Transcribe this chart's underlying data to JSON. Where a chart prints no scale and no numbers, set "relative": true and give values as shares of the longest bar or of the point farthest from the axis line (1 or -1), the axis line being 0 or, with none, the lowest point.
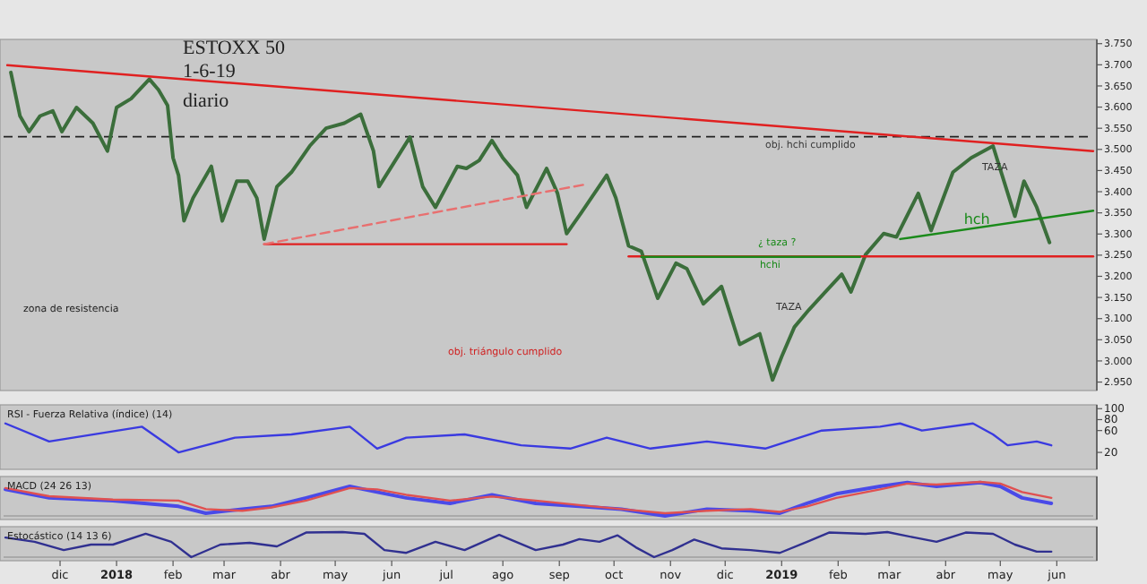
{
  "chart_data": [
    {
      "type": "line",
      "title": "ESTOXX 50",
      "subtitle": "1-6-19",
      "annotations": [
        "diario",
        "zona de resistencia",
        "obj. triángulo cumplido",
        "¿ taza ?",
        "TAZA",
        "TAZA",
        {
          "text": "obj. hchi cumplido",
          "x": "2018-12-23",
          "y": 3512
        },
        {
          "text": "hchi",
          "x": "2018-12-20",
          "y": 3227
        },
        {
          "text": "hch",
          "x": "2019-04-11",
          "y": 3334
        }
      ],
      "xlim": [
        "2017-10-31",
        "2019-06-21"
      ],
      "ylim": [
        2930,
        3760
      ],
      "yticks": [
        {
          "value": 2950,
          "label": "2.950"
        },
        {
          "value": 3000,
          "label": "3.000"
        },
        {
          "value": 3050,
          "label": "3.050"
        },
        {
          "value": 3100,
          "label": "3.100"
        },
        {
          "value": 3150,
          "label": "3.150"
        },
        {
          "value": 3200,
          "label": "3.200"
        },
        {
          "value": 3250,
          "label": "3.250"
        },
        {
          "value": 3300,
          "label": "3.300"
        },
        {
          "value": 3350,
          "label": "3.350"
        },
        {
          "value": 3400,
          "label": "3.400"
        },
        {
          "value": 3450,
          "label": "3.450"
        },
        {
          "value": 3500,
          "label": "3.500"
        },
        {
          "value": 3550,
          "label": "3.550"
        },
        {
          "value": 3600,
          "label": "3.600"
        },
        {
          "value": 3650,
          "label": "3.650"
        },
        {
          "value": 3700,
          "label": "3.700"
        },
        {
          "value": 3750,
          "label": "3.750"
        }
      ],
      "tick_labels": "y",
      "ref_lines": [
        {
          "axis": "y",
          "value": 3530,
          "color": "#222222",
          "line_style": "dashed"
        }
      ],
      "series": [
        {
          "color": "#3b6e3b",
          "x": [
            "2017-11-04",
            "2017-11-09",
            "2017-11-14",
            "2017-11-20",
            "2017-11-27",
            "2017-12-02",
            "2017-12-10",
            "2017-12-19",
            "2017-12-27",
            "2018-01-01",
            "2018-01-09",
            "2018-01-19",
            "2018-01-24",
            "2018-01-29",
            "2018-02-01",
            "2018-02-04",
            "2018-02-07",
            "2018-02-12",
            "2018-02-22",
            "2018-02-28",
            "2018-03-08",
            "2018-03-14",
            "2018-03-19",
            "2018-03-23",
            "2018-03-30",
            "2018-04-07",
            "2018-04-17",
            "2018-04-26",
            "2018-05-06",
            "2018-05-15",
            "2018-05-22",
            "2018-05-25",
            "2018-06-03",
            "2018-06-11",
            "2018-06-18",
            "2018-06-25",
            "2018-07-07",
            "2018-07-12",
            "2018-07-19",
            "2018-07-26",
            "2018-08-01",
            "2018-08-09",
            "2018-08-14",
            "2018-08-25",
            "2018-08-31",
            "2018-09-05",
            "2018-09-13",
            "2018-09-27",
            "2018-10-02",
            "2018-10-09",
            "2018-10-16",
            "2018-10-25",
            "2018-11-04",
            "2018-11-10",
            "2018-11-19",
            "2018-11-29",
            "2018-12-09",
            "2018-12-20",
            "2018-12-27",
            "2019-01-01",
            "2019-01-08",
            "2019-01-16",
            "2019-01-25",
            "2019-02-03",
            "2019-02-08",
            "2019-02-16",
            "2019-02-26",
            "2019-03-05",
            "2019-03-17",
            "2019-03-24",
            "2019-04-05",
            "2019-04-15",
            "2019-04-27",
            "2019-05-02",
            "2019-05-09",
            "2019-05-14",
            "2019-05-21",
            "2019-05-28"
          ],
          "values": [
            3682,
            3579,
            3542,
            3579,
            3591,
            3542,
            3599,
            3562,
            3496,
            3599,
            3620,
            3666,
            3641,
            3604,
            3480,
            3439,
            3331,
            3385,
            3460,
            3331,
            3425,
            3425,
            3385,
            3288,
            3412,
            3446,
            3508,
            3550,
            3562,
            3583,
            3496,
            3412,
            3474,
            3529,
            3412,
            3363,
            3460,
            3455,
            3474,
            3521,
            3480,
            3439,
            3363,
            3455,
            3396,
            3301,
            3350,
            3439,
            3385,
            3272,
            3259,
            3148,
            3231,
            3218,
            3135,
            3176,
            3039,
            3064,
            2955,
            3010,
            3080,
            3121,
            3163,
            3205,
            3163,
            3251,
            3301,
            3293,
            3396,
            3308,
            3446,
            3480,
            3508,
            3439,
            3342,
            3425,
            3363,
            3280
          ]
        },
        {
          "color": "#e02020",
          "x": [
            "2017-11-02",
            "2019-06-21"
          ],
          "values": [
            3699,
            3496
          ]
        },
        {
          "color": "#e02020",
          "x": [
            "2018-03-23",
            "2018-09-05"
          ],
          "values": [
            3276,
            3276
          ]
        },
        {
          "color": "#e87070",
          "line_style": "dashed",
          "x": [
            "2018-03-23",
            "2018-09-15"
          ],
          "values": [
            3276,
            3417
          ]
        },
        {
          "color": "#e02020",
          "x": [
            "2018-10-09",
            "2019-06-21"
          ],
          "values": [
            3247,
            3247
          ]
        },
        {
          "color": "#1a8a1a",
          "x": [
            "2018-10-16",
            "2019-02-13"
          ],
          "values": [
            3246,
            3246
          ]
        },
        {
          "color": "#1a8a1a",
          "x": [
            "2019-03-07",
            "2019-06-21"
          ],
          "values": [
            3288,
            3355
          ]
        }
      ]
    },
    {
      "type": "line",
      "title": "RSI - Fuerza Relativa (índice) (14)",
      "xlim": [
        "2017-10-31",
        "2019-06-21"
      ],
      "ylim": [
        -11,
        107
      ],
      "yticks": [
        20,
        60,
        80,
        100
      ],
      "tick_labels": "y",
      "series": [
        {
          "color": "#3a3ae0",
          "x": [
            "2017-11-01",
            "2017-11-25",
            "2018-01-15",
            "2018-02-04",
            "2018-03-07",
            "2018-04-07",
            "2018-05-09",
            "2018-05-24",
            "2018-06-09",
            "2018-07-11",
            "2018-08-11",
            "2018-09-07",
            "2018-09-27",
            "2018-10-21",
            "2018-11-21",
            "2018-12-23",
            "2019-01-23",
            "2019-02-24",
            "2019-03-07",
            "2019-03-19",
            "2019-04-16",
            "2019-04-27",
            "2019-05-05",
            "2019-05-21",
            "2019-05-29"
          ],
          "values": [
            73,
            40,
            67,
            20,
            47,
            53,
            67,
            27,
            47,
            53,
            33,
            27,
            47,
            27,
            40,
            27,
            60,
            67,
            73,
            60,
            73,
            53,
            33,
            40,
            33
          ]
        }
      ]
    },
    {
      "type": "line",
      "title": "MACD (24 26 13)",
      "relative": true,
      "xlim": [
        "2017-10-31",
        "2019-06-21"
      ],
      "series": [
        {
          "color": "#4a4ae8",
          "x": [
            "2017-11-01",
            "2017-11-25",
            "2017-12-30",
            "2018-02-04",
            "2018-02-19",
            "2018-03-11",
            "2018-03-27",
            "2018-04-15",
            "2018-05-09",
            "2018-05-24",
            "2018-06-09",
            "2018-07-03",
            "2018-07-26",
            "2018-08-19",
            "2018-09-12",
            "2018-10-05",
            "2018-10-29",
            "2018-11-21",
            "2018-12-15",
            "2018-12-31",
            "2019-01-15",
            "2019-01-31",
            "2019-02-24",
            "2019-03-11",
            "2019-03-27",
            "2019-04-20",
            "2019-05-01",
            "2019-05-13",
            "2019-05-29"
          ],
          "values": [
            0.78,
            0.53,
            0.45,
            0.28,
            0.08,
            0.2,
            0.28,
            0.53,
            0.87,
            0.7,
            0.53,
            0.37,
            0.62,
            0.37,
            0.28,
            0.2,
            0,
            0.2,
            0.15,
            0.08,
            0.37,
            0.65,
            0.87,
            0.98,
            0.87,
            0.98,
            0.87,
            0.53,
            0.37
          ]
        },
        {
          "color": "#e05050",
          "x": [
            "2017-11-01",
            "2017-11-25",
            "2017-12-30",
            "2018-02-04",
            "2018-02-19",
            "2018-03-11",
            "2018-03-27",
            "2018-04-15",
            "2018-05-09",
            "2018-05-24",
            "2018-06-09",
            "2018-07-03",
            "2018-07-26",
            "2018-08-19",
            "2018-09-12",
            "2018-10-05",
            "2018-10-29",
            "2018-11-21",
            "2018-12-15",
            "2018-12-31",
            "2019-01-15",
            "2019-01-31",
            "2019-02-24",
            "2019-03-11",
            "2019-03-27",
            "2019-04-20",
            "2019-05-01",
            "2019-05-13",
            "2019-05-29"
          ],
          "values": [
            0.82,
            0.58,
            0.48,
            0.45,
            0.2,
            0.15,
            0.25,
            0.45,
            0.82,
            0.78,
            0.62,
            0.45,
            0.57,
            0.45,
            0.32,
            0.2,
            0.08,
            0.15,
            0.2,
            0.12,
            0.28,
            0.53,
            0.78,
            0.95,
            0.92,
            1,
            0.95,
            0.7,
            0.53
          ]
        }
      ]
    },
    {
      "type": "line",
      "title": "Estocástico (14 13 6)",
      "relative": true,
      "xlim": [
        "2017-10-31",
        "2019-06-21"
      ],
      "tick_labels": "x",
      "xticks": [
        {
          "value": "2017-12-01",
          "label": "dic"
        },
        {
          "value": "2018-01-01",
          "label": "2018"
        },
        {
          "value": "2018-02-01",
          "label": "feb"
        },
        {
          "value": "2018-03-01",
          "label": "mar"
        },
        {
          "value": "2018-04-01",
          "label": "abr"
        },
        {
          "value": "2018-05-01",
          "label": "may"
        },
        {
          "value": "2018-06-01",
          "label": "jun"
        },
        {
          "value": "2018-07-01",
          "label": "jul"
        },
        {
          "value": "2018-08-01",
          "label": "ago"
        },
        {
          "value": "2018-09-01",
          "label": "sep"
        },
        {
          "value": "2018-10-01",
          "label": "oct"
        },
        {
          "value": "2018-11-01",
          "label": "nov"
        },
        {
          "value": "2018-12-01",
          "label": "dic"
        },
        {
          "value": "2019-01-01",
          "label": "2019"
        },
        {
          "value": "2019-02-01",
          "label": "feb"
        },
        {
          "value": "2019-03-01",
          "label": "mar"
        },
        {
          "value": "2019-04-01",
          "label": "abr"
        },
        {
          "value": "2019-05-01",
          "label": "may"
        },
        {
          "value": "2019-06-01",
          "label": "jun"
        }
      ],
      "series": [
        {
          "color": "#303090",
          "x": [
            "2017-11-01",
            "2017-11-17",
            "2017-12-03",
            "2017-12-18",
            "2017-12-30",
            "2018-01-17",
            "2018-01-31",
            "2018-02-11",
            "2018-02-27",
            "2018-03-15",
            "2018-03-30",
            "2018-04-15",
            "2018-05-05",
            "2018-05-17",
            "2018-05-28",
            "2018-06-09",
            "2018-06-25",
            "2018-07-11",
            "2018-07-30",
            "2018-08-19",
            "2018-09-03",
            "2018-09-12",
            "2018-09-23",
            "2018-10-03",
            "2018-10-13",
            "2018-10-23",
            "2018-11-02",
            "2018-11-14",
            "2018-11-29",
            "2018-12-15",
            "2018-12-31",
            "2019-01-15",
            "2019-01-27",
            "2019-02-16",
            "2019-02-28",
            "2019-03-15",
            "2019-03-27",
            "2019-04-12",
            "2019-04-27",
            "2019-05-09",
            "2019-05-21",
            "2019-05-29"
          ],
          "values": [
            0.78,
            0.61,
            0.28,
            0.5,
            0.5,
            0.93,
            0.61,
            0,
            0.5,
            0.57,
            0.43,
            0.98,
            1,
            0.93,
            0.28,
            0.17,
            0.61,
            0.28,
            0.89,
            0.28,
            0.5,
            0.72,
            0.61,
            0.87,
            0.39,
            0,
            0.28,
            0.7,
            0.35,
            0.28,
            0.17,
            0.61,
            0.98,
            0.93,
            1,
            0.78,
            0.61,
            0.98,
            0.93,
            0.5,
            0.22,
            0.22
          ]
        }
      ]
    }
  ]
}
